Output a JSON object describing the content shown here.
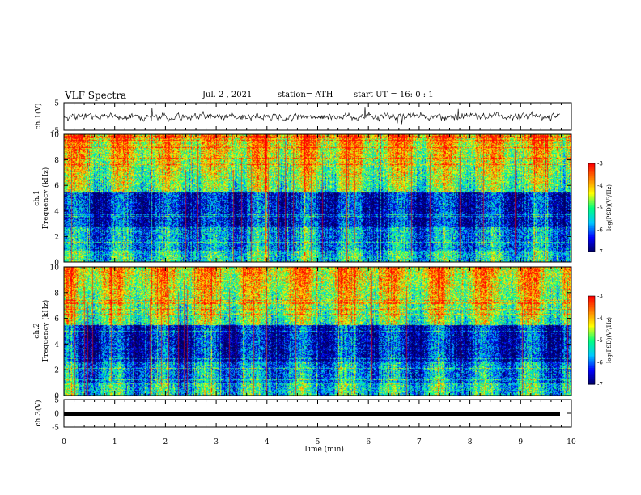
{
  "header": {
    "title": "VLF Spectra",
    "date": "Jul. 2 , 2021",
    "station": "station= ATH",
    "start": "start UT = 16: 0 : 1"
  },
  "chart_data": [
    {
      "type": "line",
      "panel": "waveform ch.1",
      "ylabel": "ch.1(V)",
      "ylim": [
        -5,
        5
      ],
      "yticks": [
        "5",
        "-5"
      ],
      "xlim": [
        0,
        10
      ],
      "series_color": "#000000"
    },
    {
      "type": "heatmap",
      "panel": "spectrogram ch.1",
      "ylabel": "ch.1\nFrequency (kHz)",
      "ylim": [
        0,
        10
      ],
      "yticks": [
        "0",
        "2",
        "4",
        "6",
        "8",
        "10"
      ],
      "xlim": [
        0,
        10
      ],
      "colorbar": {
        "label": "log(PSD)(V²/Hz)",
        "range": [
          -7,
          -3
        ],
        "ticks": [
          "-3",
          "-4",
          "-5",
          "-6",
          "-7"
        ]
      }
    },
    {
      "type": "heatmap",
      "panel": "spectrogram ch.2",
      "ylabel": "ch.2\nFrequency (kHz)",
      "ylim": [
        0,
        10
      ],
      "yticks": [
        "0",
        "2",
        "4",
        "6",
        "8",
        "10"
      ],
      "xlim": [
        0,
        10
      ],
      "colorbar": {
        "label": "log(PSD)(V²/Hz)",
        "range": [
          -7,
          -3
        ],
        "ticks": [
          "-3",
          "-4",
          "-5",
          "-6",
          "-7"
        ]
      }
    },
    {
      "type": "line",
      "panel": "waveform ch.3",
      "ylabel": "ch.3(V)",
      "ylim": [
        -5,
        5
      ],
      "yticks": [
        "5",
        "0",
        "-5"
      ],
      "xlim": [
        0,
        10
      ],
      "xlabel": "Time (min)",
      "xticks": [
        "0",
        "1",
        "2",
        "3",
        "4",
        "5",
        "6",
        "7",
        "8",
        "9",
        "10"
      ],
      "series_color": "#000000"
    }
  ],
  "colors": {
    "colormap": [
      "#000060",
      "#0000ff",
      "#00c8ff",
      "#00ff80",
      "#ffff00",
      "#ff8000",
      "#ff0000",
      "#ffffff"
    ]
  }
}
